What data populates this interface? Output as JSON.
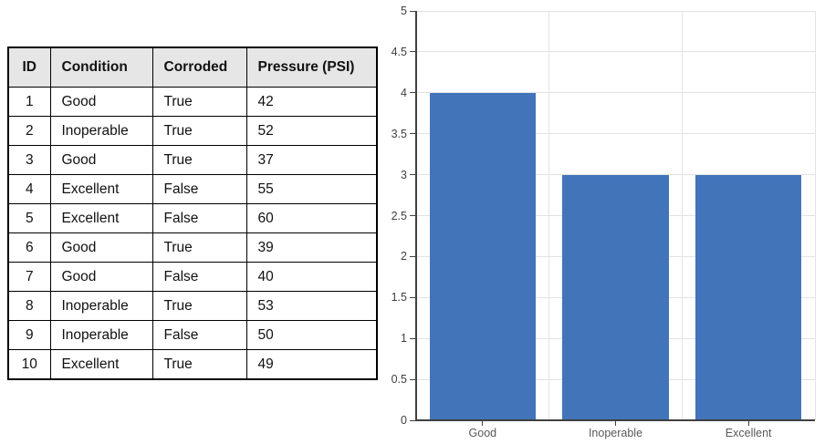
{
  "table": {
    "columns": [
      "ID",
      "Condition",
      "Corroded",
      "Pressure (PSI)"
    ],
    "rows": [
      [
        "1",
        "Good",
        "True",
        "42"
      ],
      [
        "2",
        "Inoperable",
        "True",
        "52"
      ],
      [
        "3",
        "Good",
        "True",
        "37"
      ],
      [
        "4",
        "Excellent",
        "False",
        "55"
      ],
      [
        "5",
        "Excellent",
        "False",
        "60"
      ],
      [
        "6",
        "Good",
        "True",
        "39"
      ],
      [
        "7",
        "Good",
        "False",
        "40"
      ],
      [
        "8",
        "Inoperable",
        "True",
        "53"
      ],
      [
        "9",
        "Inoperable",
        "False",
        "50"
      ],
      [
        "10",
        "Excellent",
        "True",
        "49"
      ]
    ]
  },
  "chart_data": {
    "type": "bar",
    "title": "",
    "categories": [
      "Good",
      "Inoperable",
      "Excellent"
    ],
    "values": [
      4,
      3,
      3
    ],
    "xlabel": "",
    "ylabel": "",
    "ylim": [
      0,
      5
    ],
    "ytick_step": 0.5,
    "ytick_labels": [
      "0",
      "0.5",
      "1",
      "1.5",
      "2",
      "2.5",
      "3",
      "3.5",
      "4",
      "4.5",
      "5"
    ],
    "grid": true,
    "legend_position": "none",
    "colors": {
      "bar": "#4274BA",
      "gridline": "#e3e3e3",
      "axis": "#404040",
      "ytick_label": "#404040",
      "xtick_label": "#595959"
    }
  },
  "colors": {
    "background": "#ffffff",
    "table_header_bg": "#E7E6E6",
    "table_border": "#000000",
    "table_text": "#111111"
  }
}
